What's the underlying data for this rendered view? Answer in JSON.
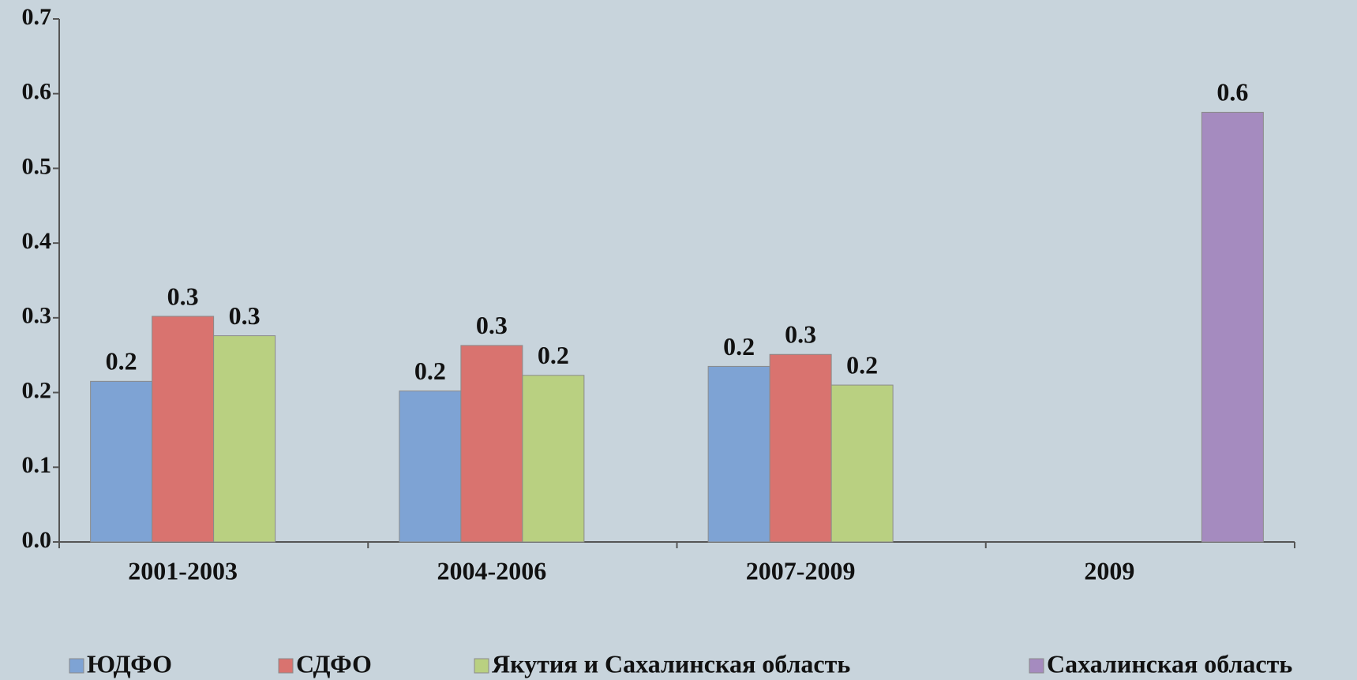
{
  "chart_data": {
    "type": "bar",
    "categories": [
      "2001-2003",
      "2004-2006",
      "2007-2009",
      "2009"
    ],
    "series": [
      {
        "name": "ЮДФО",
        "color": "#7ea3d4",
        "values": [
          0.215,
          0.202,
          0.235,
          null
        ],
        "value_labels": [
          "0.2",
          "0.2",
          "0.2",
          null
        ]
      },
      {
        "name": "СДФО",
        "color": "#d9736f",
        "values": [
          0.302,
          0.263,
          0.251,
          null
        ],
        "value_labels": [
          "0.3",
          "0.3",
          "0.3",
          null
        ]
      },
      {
        "name": "Якутия и Сахалинская область",
        "color": "#b9d081",
        "values": [
          0.276,
          0.223,
          0.21,
          null
        ],
        "value_labels": [
          "0.3",
          "0.2",
          "0.2",
          null
        ]
      },
      {
        "name": "Сахалинская область",
        "color": "#a58bbf",
        "values": [
          null,
          null,
          null,
          0.575
        ],
        "value_labels": [
          null,
          null,
          null,
          "0.6"
        ]
      }
    ],
    "ylim": [
      0,
      0.7
    ],
    "yticks": [
      {
        "value": 0,
        "label": "0.0"
      },
      0.1,
      0.2,
      0.3,
      0.4,
      0.5,
      0.6,
      0.7
    ],
    "legend": "bottom"
  }
}
